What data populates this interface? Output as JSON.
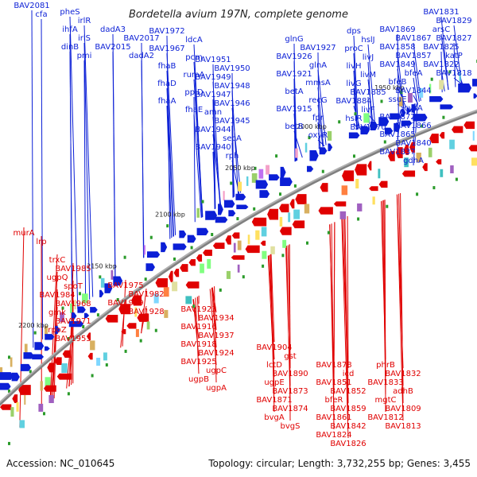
{
  "header": {
    "title": "Bordetella avium 197N, complete genome"
  },
  "footer": {
    "accession": "Accession: NC_010645",
    "summary": "Topology: circular; Length: 3,732,255 bp; Genes: 3,455"
  },
  "colors": {
    "forward": "#0b1fd6",
    "reverse": "#e00000",
    "backbone": "#808080",
    "tick": "#2a9b2a"
  },
  "scale_labels": [
    "2200 kbp",
    "2150 kbp",
    "2100 kbp",
    "2050 kbp",
    "2000 kbp",
    "1950 kbp"
  ],
  "forward_labels": [
    "BAV2081",
    "cfa",
    "pheS",
    "irlR",
    "ihfA",
    "irlS",
    "dinB",
    "pmi",
    "dadA3",
    "BAV2017",
    "BAV2015",
    "dadA2",
    "BAV1972",
    "ldcA",
    "BAV1967",
    "pcm",
    "fhaB",
    "rumA",
    "fhaD",
    "ppiD",
    "fhaA",
    "fhaE",
    "BAV1951",
    "BAV1950",
    "BAV1949",
    "BAV1948",
    "BAV1947",
    "BAV1946",
    "amn",
    "BAV1945",
    "BAV1944",
    "secA",
    "BAV1940",
    "rph",
    "glnG",
    "BAV1927",
    "BAV1926",
    "glnA",
    "BAV1921",
    "mmsA",
    "betA",
    "recG",
    "BAV1915",
    "fpr",
    "betB",
    "oxyR",
    "dps",
    "hslJ",
    "proC",
    "livJ",
    "livH",
    "livM",
    "livG",
    "BAV1885",
    "BAV1884",
    "livF",
    "hslR",
    "BAV1870",
    "BAV1869",
    "BAV1867",
    "BAV1858",
    "BAV1857",
    "BAV1849",
    "bfeA",
    "bfeB",
    "BAV1844",
    "ssuE",
    "cysA",
    "BAV1872",
    "BAV1866",
    "BAV1865",
    "BAV1840",
    "BAV1837",
    "gdhA",
    "BAV1831",
    "BAV1829",
    "arsC",
    "BAV1827",
    "BAV1825",
    "katP",
    "BAV1822",
    "BAV1818"
  ],
  "reverse_labels": [
    "murA",
    "lrp",
    "trxC",
    "BAV1985",
    "ugpQ",
    "spoT",
    "BAV1984",
    "BAV1968",
    "gmk",
    "BAV1971",
    "rpoZ",
    "BAV1953",
    "BAV1975",
    "BAV1982",
    "BAV1939",
    "BAV1928",
    "BAV1923",
    "BAV1934",
    "BAV1916",
    "BAV1937",
    "BAV1918",
    "BAV1924",
    "BAV1925",
    "ugpC",
    "ugpB",
    "ugpA",
    "BAV1904",
    "gst",
    "lctD",
    "BAV1890",
    "ugpE",
    "BAV1873",
    "BAV1871",
    "BAV1874",
    "bvgA",
    "bvgS",
    "BAV1878",
    "icd",
    "BAV1851",
    "BAV1852",
    "bfeR",
    "BAV1859",
    "BAV1861",
    "BAV1842",
    "BAV1824",
    "BAV1826",
    "phrB",
    "BAV1832",
    "BAV1833",
    "adhB",
    "mgtC",
    "BAV1809",
    "BAV1812",
    "BAV1813"
  ]
}
